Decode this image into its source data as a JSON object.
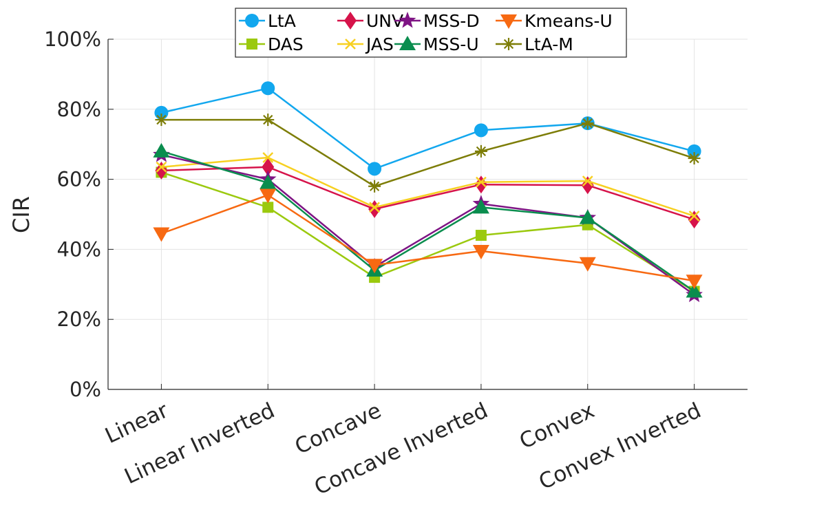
{
  "chart_data": {
    "type": "line",
    "title": "",
    "xlabel": "",
    "ylabel": "CIR",
    "ylim": [
      0,
      100
    ],
    "yticks": [
      0,
      20,
      40,
      60,
      80,
      100
    ],
    "ytick_labels": [
      "0%",
      "20%",
      "40%",
      "60%",
      "80%",
      "100%"
    ],
    "grid": true,
    "legend_position": "top-center",
    "categories": [
      "Linear",
      "Linear Inverted",
      "Concave",
      "Concave Inverted",
      "Convex",
      "Convex Inverted"
    ],
    "series": [
      {
        "name": "LtA",
        "color": "#12A7EE",
        "marker": "circle",
        "values": [
          79,
          86,
          63,
          74,
          76,
          68
        ]
      },
      {
        "name": "DAS",
        "color": "#9BC90E",
        "marker": "square",
        "values": [
          62,
          52,
          32,
          44,
          47,
          28
        ]
      },
      {
        "name": "UNV",
        "color": "#D6134A",
        "marker": "diamond",
        "values": [
          62.5,
          63.5,
          51.5,
          58.5,
          58.3,
          48.5
        ]
      },
      {
        "name": "JAS",
        "color": "#F7D021",
        "marker": "x",
        "values": [
          63.5,
          66.2,
          52,
          59.2,
          59.5,
          49.5
        ]
      },
      {
        "name": "MSS-D",
        "color": "#7E1484",
        "marker": "star",
        "values": [
          67,
          60,
          35,
          53,
          49,
          27
        ]
      },
      {
        "name": "MSS-U",
        "color": "#0A8D4E",
        "marker": "triangle-up",
        "values": [
          68,
          59,
          34,
          52,
          49,
          28
        ]
      },
      {
        "name": "Kmeans-U",
        "color": "#F76912",
        "marker": "triangle-down",
        "values": [
          44.5,
          55.5,
          35.5,
          39.5,
          36,
          31
        ]
      },
      {
        "name": "LtA-M",
        "color": "#7D7D07",
        "marker": "asterisk",
        "values": [
          77,
          77,
          58,
          68,
          76,
          66
        ]
      }
    ]
  }
}
